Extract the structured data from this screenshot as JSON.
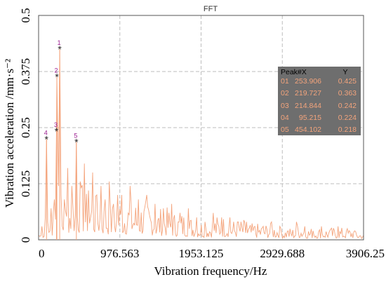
{
  "chart_data": {
    "type": "line",
    "title": "FFT",
    "xlabel": "Vibration frequency/Hz",
    "ylabel": "Vibration acceleration /mm·s⁻²",
    "xlim": [
      0,
      3906.25
    ],
    "ylim": [
      0,
      0.5
    ],
    "x_ticks": [
      "0",
      "976.563",
      "1953.125",
      "2929.688",
      "3906.25"
    ],
    "y_ticks": [
      "0",
      "0.125",
      "0.25",
      "0.375",
      "0.5"
    ],
    "grid": true,
    "series_color": "#f4a47c",
    "peaks": [
      {
        "label": "1",
        "x": 253.906,
        "y": 0.425
      },
      {
        "label": "2",
        "x": 219.727,
        "y": 0.363
      },
      {
        "label": "3",
        "x": 214.844,
        "y": 0.242
      },
      {
        "label": "4",
        "x": 95.215,
        "y": 0.224
      },
      {
        "label": "5",
        "x": 454.102,
        "y": 0.218
      }
    ],
    "peak_table": {
      "headers": [
        "Peak#X",
        "Y"
      ],
      "rows": [
        [
          "01",
          "253.906",
          "0.425"
        ],
        [
          "02",
          "219.727",
          "0.363"
        ],
        [
          "03",
          "214.844",
          "0.242"
        ],
        [
          "04",
          "95.215",
          "0.224"
        ],
        [
          "05",
          "454.102",
          "0.218"
        ]
      ]
    },
    "spectrum": {
      "x": [
        0,
        40,
        80,
        95.215,
        110,
        150,
        190,
        214.844,
        219.727,
        240,
        253.906,
        270,
        310,
        350,
        400,
        454.102,
        500,
        550,
        600,
        650,
        700,
        750,
        800,
        850,
        900,
        950,
        1000,
        1100,
        1200,
        1300,
        1400,
        1500,
        1600,
        1700,
        1800,
        1900,
        2000,
        2100,
        2200,
        2300,
        2400,
        2500,
        2600,
        2700,
        2800,
        2900,
        3000,
        3100,
        3200,
        3300,
        3400,
        3500,
        3600,
        3700,
        3800,
        3906.25
      ],
      "y": [
        0.01,
        0.03,
        0.05,
        0.224,
        0.04,
        0.07,
        0.09,
        0.242,
        0.363,
        0.12,
        0.425,
        0.1,
        0.09,
        0.16,
        0.12,
        0.218,
        0.13,
        0.17,
        0.11,
        0.15,
        0.1,
        0.12,
        0.09,
        0.13,
        0.08,
        0.1,
        0.1,
        0.12,
        0.09,
        0.1,
        0.08,
        0.07,
        0.08,
        0.06,
        0.07,
        0.05,
        0.04,
        0.06,
        0.05,
        0.05,
        0.04,
        0.04,
        0.03,
        0.03,
        0.04,
        0.03,
        0.02,
        0.04,
        0.03,
        0.02,
        0.03,
        0.02,
        0.03,
        0.02,
        0.02,
        0.01
      ]
    }
  }
}
